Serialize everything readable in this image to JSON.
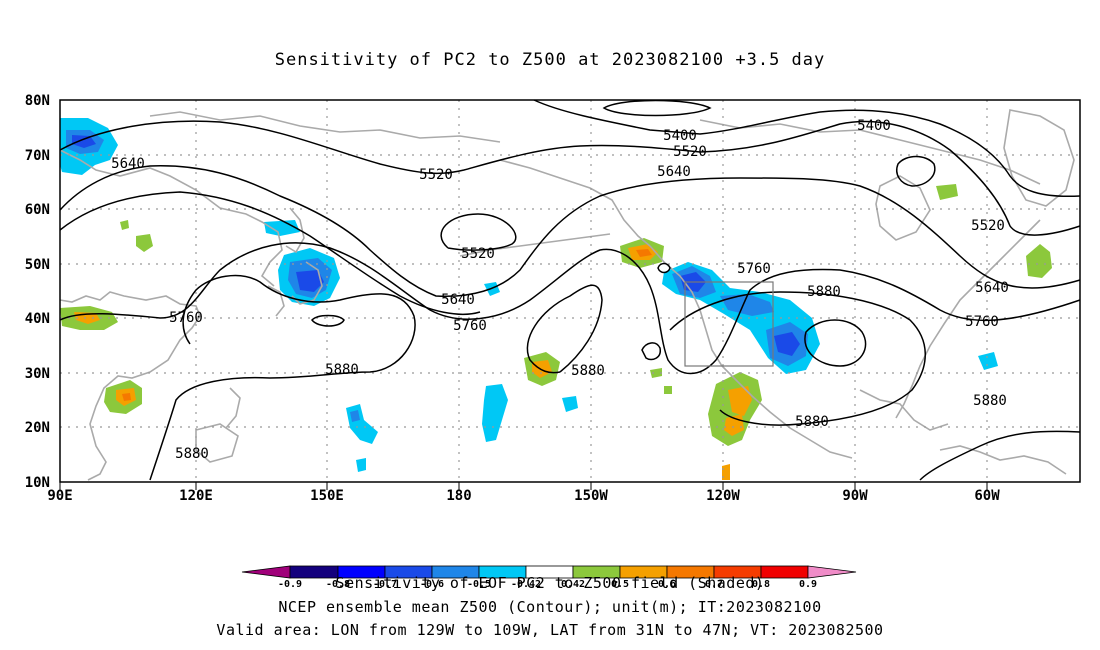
{
  "title": "Sensitivity of PC2 to Z500 at 2023082100 +3.5 day",
  "lat_labels": [
    "80N",
    "70N",
    "60N",
    "50N",
    "40N",
    "30N",
    "20N",
    "10N"
  ],
  "lon_labels": [
    "90E",
    "120E",
    "150E",
    "180",
    "150W",
    "120W",
    "90W",
    "60W"
  ],
  "contours": [
    {
      "label": "5400",
      "level": 5400
    },
    {
      "label": "5400",
      "level": 5400
    },
    {
      "label": "5520",
      "level": 5520
    },
    {
      "label": "5520",
      "level": 5520
    },
    {
      "label": "5520",
      "level": 5520
    },
    {
      "label": "5520",
      "level": 5520
    },
    {
      "label": "5640",
      "level": 5640
    },
    {
      "label": "5640",
      "level": 5640
    },
    {
      "label": "5640",
      "level": 5640
    },
    {
      "label": "5640",
      "level": 5640
    },
    {
      "label": "5760",
      "level": 5760
    },
    {
      "label": "5760",
      "level": 5760
    },
    {
      "label": "5760",
      "level": 5760
    },
    {
      "label": "5760",
      "level": 5760
    },
    {
      "label": "5880",
      "level": 5880
    },
    {
      "label": "5880",
      "level": 5880
    },
    {
      "label": "5880",
      "level": 5880
    },
    {
      "label": "5880",
      "level": 5880
    },
    {
      "label": "5880",
      "level": 5880
    },
    {
      "label": "5880",
      "level": 5880
    }
  ],
  "colorbar": {
    "ticks": [
      "-0.9",
      "-0.8",
      "-0.7",
      "-0.6",
      "-0.5",
      "-0.42",
      "0.42",
      "0.5",
      "0.6",
      "0.7",
      "0.8",
      "0.9"
    ],
    "colors": [
      "#a0007a",
      "#13007d",
      "#0000ff",
      "#1a4ae8",
      "#1f86e8",
      "#00c8f5",
      "#ffffff",
      "#8cc83c",
      "#f5a000",
      "#f57800",
      "#f53c00",
      "#f00000",
      "#f08cc8"
    ]
  },
  "captions": {
    "line1": "Sensitivity of EOF PC2 to Z500 field (Shaded)",
    "line2": "NCEP ensemble mean Z500 (Contour); unit(m); IT:2023082100",
    "line3": "Valid area: LON from 129W to 109W, LAT from 31N to 47N; VT: 2023082500"
  },
  "colors": {
    "coast": "#aaaaaa",
    "contour": "#000000",
    "grid": "#999999",
    "frame": "#000000"
  }
}
